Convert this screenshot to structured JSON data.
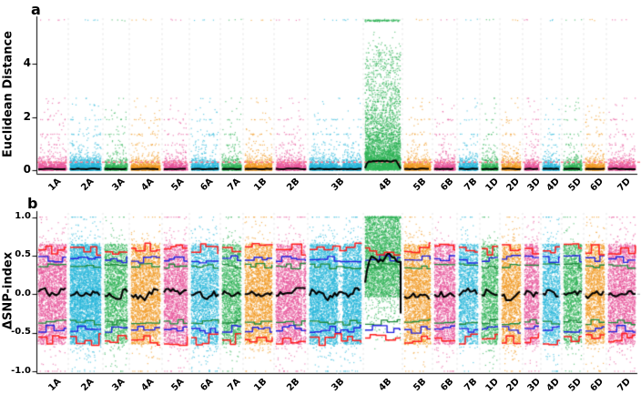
{
  "palette": {
    "pink": "#E8559B",
    "cyan": "#29B8DC",
    "green": "#2FB457",
    "orange": "#F29A22",
    "red_line": "#FF1F1F",
    "blue_line": "#2323E0",
    "green_line": "#1F8B3D",
    "black_line": "#000000",
    "threshold_pink": "#FF7088",
    "zero_gray": "#AAAAAA",
    "separator_gray": "#E2E2E2",
    "axis_black": "#000000"
  },
  "chart_data": {
    "type": "scatter",
    "description": "Two-panel BSA-seq style Manhattan plot across 21 wheat chromosomes; QTL peak on 4B",
    "x_categories": [
      "1A",
      "2A",
      "3A",
      "4A",
      "5A",
      "6A",
      "7A",
      "1B",
      "2B",
      "3B",
      "4B",
      "5B",
      "6B",
      "7B",
      "1D",
      "2D",
      "3D",
      "4D",
      "5D",
      "6D",
      "7D"
    ],
    "panel_a": {
      "letter": "a",
      "ylabel": "Euclidean Distance",
      "ylim": [
        0,
        5.7
      ],
      "yticks": [
        "0",
        "2",
        "4"
      ],
      "ytick_values": [
        0,
        2,
        4
      ],
      "threshold_value": 0.3,
      "top_band_value": 5.65,
      "band_values": [
        0.95,
        1.35,
        1.9,
        2.7
      ],
      "grid": false
    },
    "panel_b": {
      "letter": "b",
      "ylabel": "ΔSNP-index",
      "ylim": [
        -1.05,
        1.05
      ],
      "yticks": [
        "1.0",
        "0.5",
        "0.0",
        "-0.5",
        "-1.0"
      ],
      "ytick_values": [
        1.0,
        0.5,
        0.0,
        -0.5,
        -1.0
      ],
      "zero_line_value": 0.0,
      "ci_red": 0.585,
      "ci_blue": 0.455,
      "ci_green": 0.365
    },
    "chromosomes": [
      {
        "name": "1A",
        "width": 31,
        "color": "pink",
        "a_trend": 0.05,
        "b_trend": 0.0
      },
      {
        "name": "2A",
        "width": 34,
        "color": "cyan",
        "a_trend": 0.05,
        "b_trend": 0.0,
        "density": 1.6
      },
      {
        "name": "3A",
        "width": 25,
        "color": "green",
        "a_trend": 0.05,
        "b_trend": 0.0
      },
      {
        "name": "4A",
        "width": 32,
        "color": "orange",
        "a_trend": 0.05,
        "b_trend": 0.0
      },
      {
        "name": "5A",
        "width": 26,
        "color": "pink",
        "a_trend": 0.05,
        "b_trend": 0.0
      },
      {
        "name": "6A",
        "width": 30,
        "color": "cyan",
        "a_trend": 0.05,
        "b_trend": 0.0
      },
      {
        "name": "7A",
        "width": 21,
        "color": "green",
        "a_trend": 0.05,
        "b_trend": 0.0
      },
      {
        "name": "1B",
        "width": 30,
        "color": "orange",
        "a_trend": 0.05,
        "b_trend": 0.0
      },
      {
        "name": "2B",
        "width": 33,
        "color": "pink",
        "a_trend": 0.05,
        "b_trend": 0.0,
        "gap": [
          0.86,
          0.92
        ]
      },
      {
        "name": "3B",
        "width": 57,
        "color": "cyan",
        "a_trend": 0.05,
        "b_trend": 0.0,
        "gap": [
          0.54,
          0.64
        ],
        "density": 1.35
      },
      {
        "name": "4B",
        "width": 39,
        "color": "green",
        "a_trend": 0.33,
        "b_trend": 0.45,
        "qtl_peak": true
      },
      {
        "name": "5B",
        "width": 29,
        "color": "orange",
        "a_trend": 0.05,
        "b_trend": 0.0
      },
      {
        "name": "6B",
        "width": 23,
        "color": "pink",
        "a_trend": 0.05,
        "b_trend": 0.0
      },
      {
        "name": "7B",
        "width": 21,
        "color": "cyan",
        "a_trend": 0.05,
        "b_trend": 0.0
      },
      {
        "name": "1D",
        "width": 18,
        "color": "green",
        "a_trend": 0.05,
        "b_trend": 0.0
      },
      {
        "name": "2D",
        "width": 21,
        "color": "orange",
        "a_trend": 0.05,
        "b_trend": 0.0
      },
      {
        "name": "3D",
        "width": 16,
        "color": "pink",
        "a_trend": 0.05,
        "b_trend": 0.0
      },
      {
        "name": "4D",
        "width": 19,
        "color": "cyan",
        "a_trend": 0.05,
        "b_trend": 0.0
      },
      {
        "name": "5D",
        "width": 20,
        "color": "green",
        "a_trend": 0.05,
        "b_trend": 0.0
      },
      {
        "name": "6D",
        "width": 21,
        "color": "orange",
        "a_trend": 0.05,
        "b_trend": 0.0
      },
      {
        "name": "7D",
        "width": 30,
        "color": "pink",
        "a_trend": 0.05,
        "b_trend": 0.0
      }
    ]
  }
}
